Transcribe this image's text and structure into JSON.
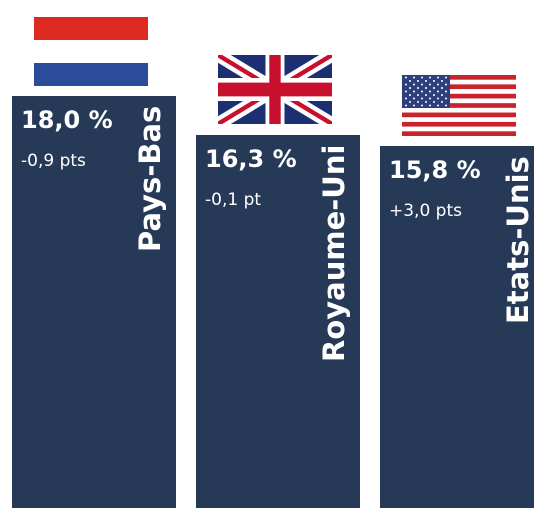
{
  "chart_data": {
    "type": "bar",
    "categories": [
      "Pays-Bas",
      "Royaume-Uni",
      "Etats-Unis"
    ],
    "values": [
      18.0,
      16.3,
      15.8
    ],
    "value_labels": [
      "18,0 %",
      "16,3 %",
      "15,8 %"
    ],
    "change_labels": [
      "-0,9 pts",
      "-0,1 pt",
      "+3,0 pts"
    ],
    "flag_icons": [
      "netherlands-flag-icon",
      "uk-flag-icon",
      "usa-flag-icon"
    ],
    "bar_color": "#263a57",
    "title": "",
    "xlabel": "",
    "ylabel": "",
    "grid": false,
    "legend": "none"
  }
}
